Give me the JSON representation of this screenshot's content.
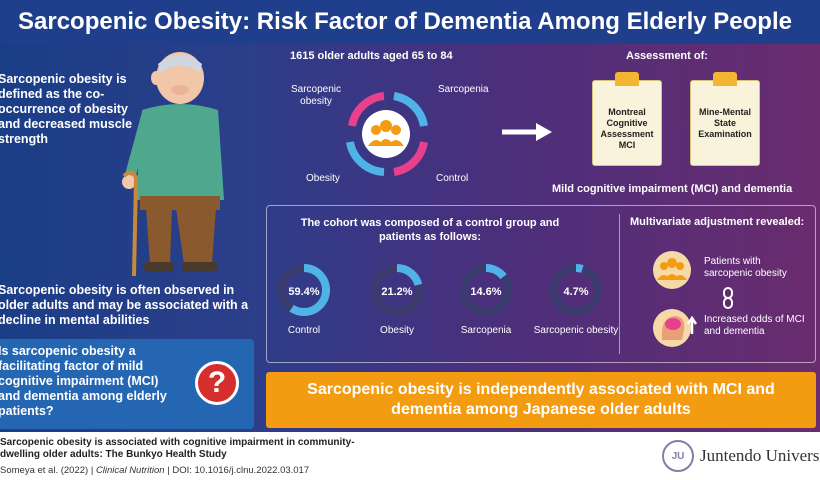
{
  "title": "Sarcopenic Obesity: Risk Factor of Dementia Among Elderly People",
  "left": {
    "definition": "Sarcopenic obesity is defined as the co-occurrence of obesity and decreased muscle strength",
    "observed": "Sarcopenic obesity is often observed in older adults and may be associated with a decline in mental abilities",
    "question": "Is sarcopenic obesity a facilitating factor of mild cognitive impairment (MCI) and dementia among elderly patients?",
    "question_mark": "?"
  },
  "cohort": {
    "title": "1615 older adults aged 65 to 84",
    "groups": [
      "Sarcopenic obesity",
      "Sarcopenia",
      "Obesity",
      "Control"
    ]
  },
  "assessment": {
    "title": "Assessment of:",
    "tests": [
      "Montreal Cognitive Assessment MCI",
      "Mine-Mental State Examination"
    ],
    "outcome": "Mild cognitive impairment (MCI) and dementia"
  },
  "composition": {
    "title": "The cohort was composed of a control group and patients as follows:",
    "items": [
      {
        "label": "Control",
        "percent": "59.4%",
        "value": 59.4
      },
      {
        "label": "Obesity",
        "percent": "21.2%",
        "value": 21.2
      },
      {
        "label": "Sarcopenia",
        "percent": "14.6%",
        "value": 14.6
      },
      {
        "label": "Sarcopenic obesity",
        "percent": "4.7%",
        "value": 4.7
      }
    ]
  },
  "multivariate": {
    "title": "Multivariate adjustment revealed:",
    "patients": "Patients with sarcopenic obesity",
    "odds": "Increased odds of MCI and dementia"
  },
  "conclusion": "Sarcopenic obesity is independently associated with MCI and dementia among Japanese older adults",
  "footer": {
    "paper_title": "Sarcopenic obesity is associated with cognitive impairment in community-dwelling older adults: The Bunkyo Health Study",
    "authors": "Someya et al. (2022)",
    "journal": "Clinical Nutrition",
    "doi": "DOI: 10.1016/j.clnu.2022.03.017",
    "university": "Juntendo University"
  },
  "colors": {
    "header": "#1f3e8c",
    "accent": "#f39c12",
    "donut": "#4fb3e8",
    "question": "#d62d2d"
  }
}
